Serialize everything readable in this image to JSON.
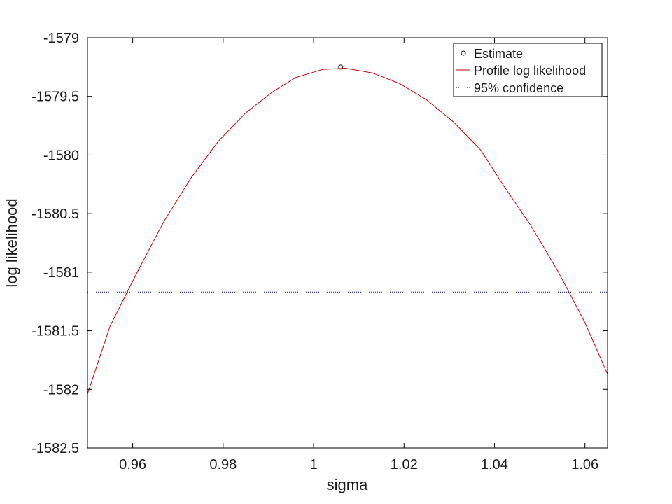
{
  "chart_data": {
    "type": "line",
    "title": "",
    "xlabel": "sigma",
    "ylabel": "log likelihood",
    "xlim": [
      0.95,
      1.065
    ],
    "ylim": [
      -1582.5,
      -1579
    ],
    "xticks": [
      0.96,
      0.98,
      1,
      1.02,
      1.04,
      1.06
    ],
    "xtick_labels": [
      "0.96",
      "0.98",
      "1",
      "1.02",
      "1.04",
      "1.06"
    ],
    "yticks": [
      -1579,
      -1579.5,
      -1580,
      -1580.5,
      -1581,
      -1581.5,
      -1582,
      -1582.5
    ],
    "ytick_labels": [
      "-1579",
      "-1579.5",
      "-1580",
      "-1580.5",
      "-1581",
      "-1581.5",
      "-1582",
      "-1582.5"
    ],
    "grid": false,
    "legend_position": "top-right",
    "series": [
      {
        "name": "Profile log likelihood",
        "color": "#cc0000",
        "style": "solid",
        "x": [
          0.95,
          0.955,
          0.961,
          0.967,
          0.973,
          0.979,
          0.985,
          0.991,
          0.996,
          1.002,
          1.007,
          1.013,
          1.019,
          1.025,
          1.031,
          1.037,
          1.042,
          1.048,
          1.054,
          1.06,
          1.065
        ],
        "y": [
          -1582.04,
          -1581.46,
          -1581.0,
          -1580.56,
          -1580.19,
          -1579.88,
          -1579.64,
          -1579.46,
          -1579.34,
          -1579.27,
          -1579.26,
          -1579.3,
          -1579.39,
          -1579.53,
          -1579.72,
          -1579.96,
          -1580.26,
          -1580.6,
          -1580.99,
          -1581.43,
          -1581.87
        ]
      },
      {
        "name": "95% confidence",
        "color": "#000080",
        "style": "dotted",
        "x": [
          0.95,
          1.065
        ],
        "y": [
          -1581.17,
          -1581.17
        ]
      }
    ],
    "estimate": {
      "name": "Estimate",
      "x": 1.006,
      "y": -1579.25,
      "color": "#000000",
      "marker": "circle"
    }
  }
}
